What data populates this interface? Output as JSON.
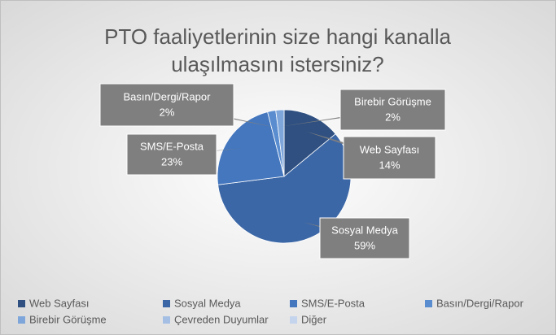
{
  "chart_data": {
    "type": "pie",
    "title": "PTO faaliyetlerinin size hangi kanalla ulaşılmasını istersiniz?",
    "categories": [
      "Web Sayfası",
      "Sosyal Medya",
      "SMS/E-Posta",
      "Basın/Dergi/Rapor",
      "Birebir Görüşme",
      "Çevreden Duyumlar",
      "Diğer"
    ],
    "values": [
      14,
      59,
      23,
      2,
      2,
      0,
      0
    ],
    "value_labels": [
      "14%",
      "59%",
      "23%",
      "2%",
      "2%",
      null,
      null
    ],
    "colors": [
      "#2f5081",
      "#3c67a6",
      "#4577be",
      "#5a8dcf",
      "#7ea6da",
      "#a5bfe4",
      "#c4d4ec"
    ],
    "legend": "bottom"
  }
}
